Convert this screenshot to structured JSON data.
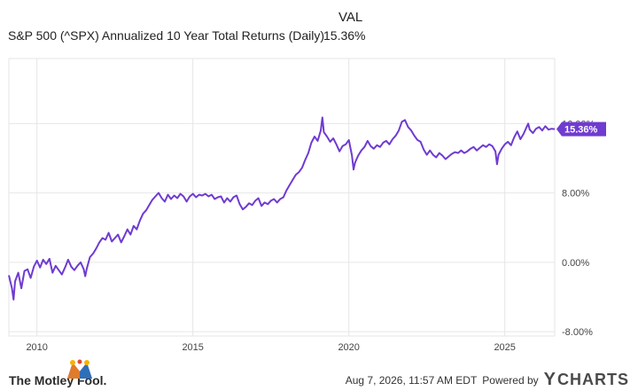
{
  "header": {
    "val_label": "VAL",
    "series_name": "S&P 500 (^SPX) Annualized 10 Year Total Returns (Daily)",
    "series_value": "15.36%"
  },
  "colors": {
    "line": "#6f3bd1",
    "grid": "#e6e6e6",
    "tag_bg": "#6f3bd1",
    "tag_text": "#ffffff"
  },
  "chart_data": {
    "type": "line",
    "title": "",
    "xlabel": "",
    "ylabel": "",
    "x_ticks": [
      "2010",
      "2015",
      "2020",
      "2025"
    ],
    "x_tick_values": [
      2010,
      2015,
      2020,
      2025
    ],
    "y_ticks": [
      "16.00%",
      "8.00%",
      "0.00%",
      "-8.00%"
    ],
    "y_tick_values": [
      16,
      8,
      0,
      -8
    ],
    "xlim": [
      2009.1,
      2026.6
    ],
    "ylim": [
      -8.5,
      23.5
    ],
    "grid": true,
    "series": [
      {
        "name": "S&P 500 (^SPX) Annualized 10 Year Total Returns (Daily)",
        "current_value_label": "15.36%",
        "points": [
          [
            2009.1,
            -1.5
          ],
          [
            2009.2,
            -3.0
          ],
          [
            2009.25,
            -4.3
          ],
          [
            2009.3,
            -2.2
          ],
          [
            2009.4,
            -1.2
          ],
          [
            2009.5,
            -3.0
          ],
          [
            2009.6,
            -1.0
          ],
          [
            2009.7,
            -0.8
          ],
          [
            2009.8,
            -1.8
          ],
          [
            2009.9,
            -0.5
          ],
          [
            2010.0,
            0.2
          ],
          [
            2010.1,
            -0.6
          ],
          [
            2010.2,
            0.3
          ],
          [
            2010.3,
            -0.2
          ],
          [
            2010.4,
            0.4
          ],
          [
            2010.5,
            -1.2
          ],
          [
            2010.6,
            -0.4
          ],
          [
            2010.7,
            -0.9
          ],
          [
            2010.8,
            -1.4
          ],
          [
            2010.9,
            -0.6
          ],
          [
            2011.0,
            0.3
          ],
          [
            2011.1,
            -0.5
          ],
          [
            2011.2,
            -0.9
          ],
          [
            2011.3,
            -0.4
          ],
          [
            2011.4,
            0.0
          ],
          [
            2011.5,
            -0.8
          ],
          [
            2011.55,
            -1.6
          ],
          [
            2011.6,
            -0.7
          ],
          [
            2011.7,
            0.6
          ],
          [
            2011.8,
            1.0
          ],
          [
            2011.9,
            1.6
          ],
          [
            2012.0,
            2.3
          ],
          [
            2012.1,
            2.8
          ],
          [
            2012.2,
            2.6
          ],
          [
            2012.3,
            3.4
          ],
          [
            2012.4,
            2.4
          ],
          [
            2012.5,
            2.8
          ],
          [
            2012.6,
            3.2
          ],
          [
            2012.7,
            2.3
          ],
          [
            2012.8,
            3.0
          ],
          [
            2012.9,
            3.8
          ],
          [
            2013.0,
            3.2
          ],
          [
            2013.1,
            4.2
          ],
          [
            2013.2,
            3.8
          ],
          [
            2013.3,
            4.8
          ],
          [
            2013.4,
            5.6
          ],
          [
            2013.5,
            6.0
          ],
          [
            2013.6,
            6.6
          ],
          [
            2013.7,
            7.2
          ],
          [
            2013.8,
            7.6
          ],
          [
            2013.9,
            8.0
          ],
          [
            2014.0,
            7.4
          ],
          [
            2014.1,
            7.0
          ],
          [
            2014.2,
            7.8
          ],
          [
            2014.3,
            7.3
          ],
          [
            2014.4,
            7.7
          ],
          [
            2014.5,
            7.4
          ],
          [
            2014.6,
            7.9
          ],
          [
            2014.7,
            7.6
          ],
          [
            2014.8,
            7.0
          ],
          [
            2014.9,
            7.6
          ],
          [
            2015.0,
            7.9
          ],
          [
            2015.1,
            7.5
          ],
          [
            2015.2,
            7.8
          ],
          [
            2015.3,
            7.7
          ],
          [
            2015.4,
            7.9
          ],
          [
            2015.5,
            7.6
          ],
          [
            2015.6,
            7.8
          ],
          [
            2015.7,
            7.3
          ],
          [
            2015.8,
            7.5
          ],
          [
            2015.9,
            7.6
          ],
          [
            2016.0,
            6.9
          ],
          [
            2016.1,
            7.4
          ],
          [
            2016.2,
            7.0
          ],
          [
            2016.3,
            7.5
          ],
          [
            2016.4,
            7.7
          ],
          [
            2016.5,
            6.7
          ],
          [
            2016.6,
            6.1
          ],
          [
            2016.7,
            6.4
          ],
          [
            2016.8,
            6.8
          ],
          [
            2016.9,
            6.6
          ],
          [
            2017.0,
            7.1
          ],
          [
            2017.1,
            7.4
          ],
          [
            2017.2,
            6.5
          ],
          [
            2017.3,
            6.9
          ],
          [
            2017.4,
            6.7
          ],
          [
            2017.5,
            7.1
          ],
          [
            2017.6,
            7.3
          ],
          [
            2017.7,
            6.9
          ],
          [
            2017.8,
            7.3
          ],
          [
            2017.9,
            7.5
          ],
          [
            2018.0,
            8.3
          ],
          [
            2018.1,
            8.9
          ],
          [
            2018.2,
            9.5
          ],
          [
            2018.3,
            10.1
          ],
          [
            2018.4,
            10.4
          ],
          [
            2018.5,
            10.9
          ],
          [
            2018.6,
            11.8
          ],
          [
            2018.7,
            12.6
          ],
          [
            2018.8,
            13.8
          ],
          [
            2018.9,
            14.5
          ],
          [
            2019.0,
            14.0
          ],
          [
            2019.1,
            15.2
          ],
          [
            2019.15,
            16.7
          ],
          [
            2019.2,
            15.0
          ],
          [
            2019.3,
            14.5
          ],
          [
            2019.4,
            13.9
          ],
          [
            2019.5,
            14.3
          ],
          [
            2019.6,
            13.6
          ],
          [
            2019.7,
            12.8
          ],
          [
            2019.8,
            13.4
          ],
          [
            2019.9,
            13.6
          ],
          [
            2020.0,
            14.1
          ],
          [
            2020.1,
            12.3
          ],
          [
            2020.15,
            10.7
          ],
          [
            2020.2,
            11.5
          ],
          [
            2020.3,
            12.3
          ],
          [
            2020.4,
            12.9
          ],
          [
            2020.5,
            13.3
          ],
          [
            2020.6,
            14.0
          ],
          [
            2020.7,
            13.4
          ],
          [
            2020.8,
            13.1
          ],
          [
            2020.9,
            13.5
          ],
          [
            2021.0,
            13.3
          ],
          [
            2021.1,
            13.8
          ],
          [
            2021.2,
            14.0
          ],
          [
            2021.3,
            13.6
          ],
          [
            2021.4,
            14.2
          ],
          [
            2021.5,
            14.6
          ],
          [
            2021.6,
            15.2
          ],
          [
            2021.7,
            16.2
          ],
          [
            2021.8,
            16.4
          ],
          [
            2021.9,
            15.6
          ],
          [
            2022.0,
            15.2
          ],
          [
            2022.1,
            14.6
          ],
          [
            2022.2,
            14.1
          ],
          [
            2022.3,
            13.9
          ],
          [
            2022.4,
            13.0
          ],
          [
            2022.5,
            12.4
          ],
          [
            2022.6,
            12.9
          ],
          [
            2022.7,
            12.4
          ],
          [
            2022.8,
            12.1
          ],
          [
            2022.9,
            12.6
          ],
          [
            2023.0,
            12.3
          ],
          [
            2023.1,
            11.9
          ],
          [
            2023.2,
            12.2
          ],
          [
            2023.3,
            12.5
          ],
          [
            2023.4,
            12.7
          ],
          [
            2023.5,
            12.6
          ],
          [
            2023.6,
            12.9
          ],
          [
            2023.7,
            12.6
          ],
          [
            2023.8,
            12.8
          ],
          [
            2023.9,
            13.1
          ],
          [
            2024.0,
            13.3
          ],
          [
            2024.1,
            12.9
          ],
          [
            2024.2,
            13.2
          ],
          [
            2024.3,
            13.5
          ],
          [
            2024.4,
            13.3
          ],
          [
            2024.5,
            13.6
          ],
          [
            2024.6,
            13.4
          ],
          [
            2024.7,
            12.8
          ],
          [
            2024.75,
            11.3
          ],
          [
            2024.8,
            12.4
          ],
          [
            2024.9,
            13.1
          ],
          [
            2025.0,
            13.6
          ],
          [
            2025.1,
            13.9
          ],
          [
            2025.2,
            13.5
          ],
          [
            2025.3,
            14.4
          ],
          [
            2025.4,
            15.1
          ],
          [
            2025.5,
            14.2
          ],
          [
            2025.6,
            14.8
          ],
          [
            2025.7,
            15.6
          ],
          [
            2025.75,
            16.0
          ],
          [
            2025.8,
            15.3
          ],
          [
            2025.9,
            14.9
          ],
          [
            2026.0,
            15.4
          ],
          [
            2026.1,
            15.6
          ],
          [
            2026.2,
            15.2
          ],
          [
            2026.3,
            15.7
          ],
          [
            2026.4,
            15.3
          ],
          [
            2026.5,
            15.4
          ],
          [
            2026.6,
            15.36
          ]
        ]
      }
    ]
  },
  "footer": {
    "brand": "The Motley Fool.",
    "timestamp": "Aug 7, 2026, 11:57 AM EDT",
    "powered_by": "Powered by",
    "ycharts_logo": "CHARTS",
    "ycharts_y": "Y",
    "jester_icon": "jester-hat-icon"
  }
}
